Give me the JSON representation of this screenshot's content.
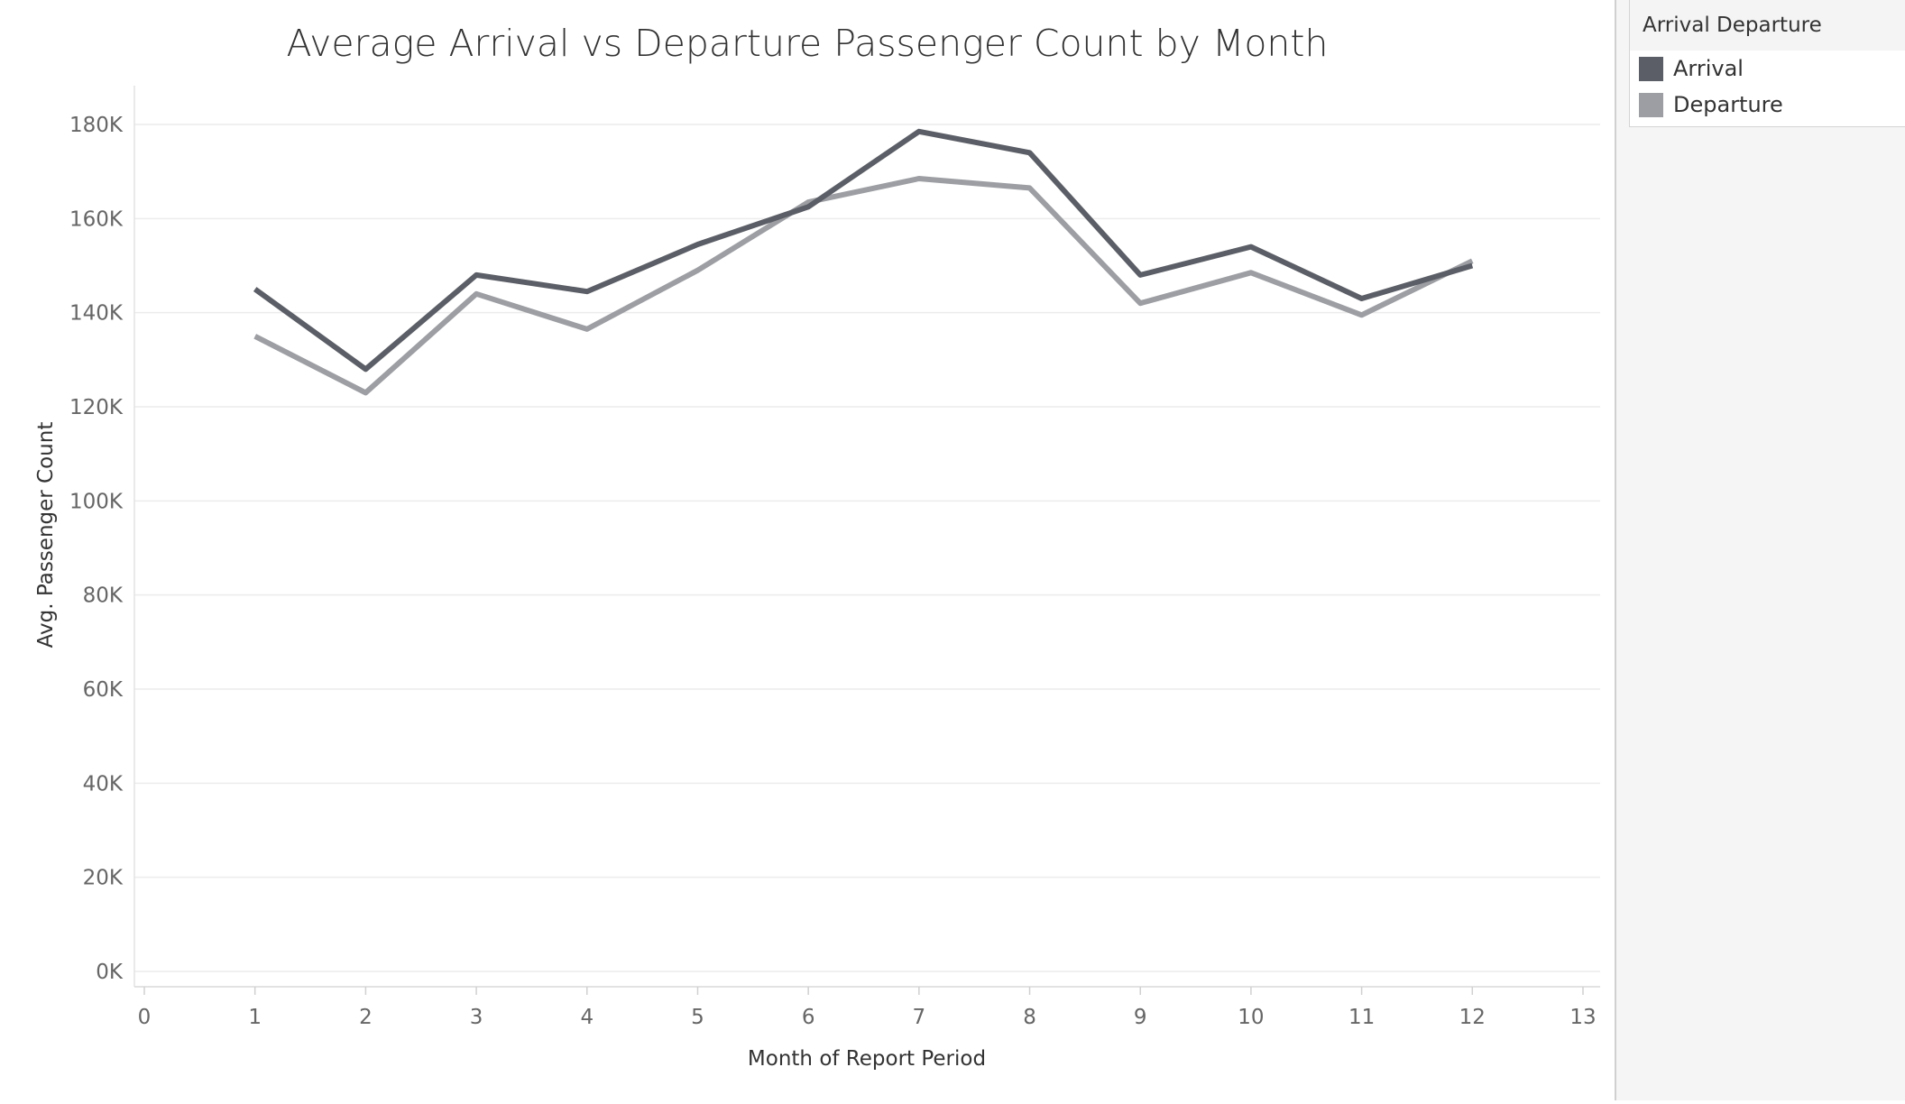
{
  "chart_data": {
    "type": "line",
    "title": "Average Arrival vs Departure Passenger Count by Month",
    "xlabel": "Month of Report Period",
    "ylabel": "Avg. Passenger Count",
    "xlim": [
      0,
      13
    ],
    "ylim": [
      0,
      180000
    ],
    "x_ticks": [
      "0",
      "1",
      "2",
      "3",
      "4",
      "5",
      "6",
      "7",
      "8",
      "9",
      "10",
      "11",
      "12",
      "13"
    ],
    "y_ticks": [
      "0K",
      "20K",
      "40K",
      "60K",
      "80K",
      "100K",
      "120K",
      "140K",
      "160K",
      "180K"
    ],
    "grid": true,
    "legend_position": "top-right",
    "x": [
      1,
      2,
      3,
      4,
      5,
      6,
      7,
      8,
      9,
      10,
      11,
      12
    ],
    "series": [
      {
        "name": "Arrival",
        "color": "#5b5e66",
        "values": [
          145000,
          128000,
          148000,
          144500,
          154500,
          162500,
          178500,
          174000,
          148000,
          154000,
          143000,
          150000
        ]
      },
      {
        "name": "Departure",
        "color": "#9c9ea3",
        "values": [
          135000,
          123000,
          144000,
          136500,
          149000,
          163500,
          168500,
          166500,
          142000,
          148500,
          139500,
          151000
        ]
      }
    ]
  },
  "legend": {
    "title": "Arrival Departure",
    "items": [
      {
        "label": "Arrival",
        "color": "#5b5e66"
      },
      {
        "label": "Departure",
        "color": "#9c9ea3"
      }
    ]
  }
}
